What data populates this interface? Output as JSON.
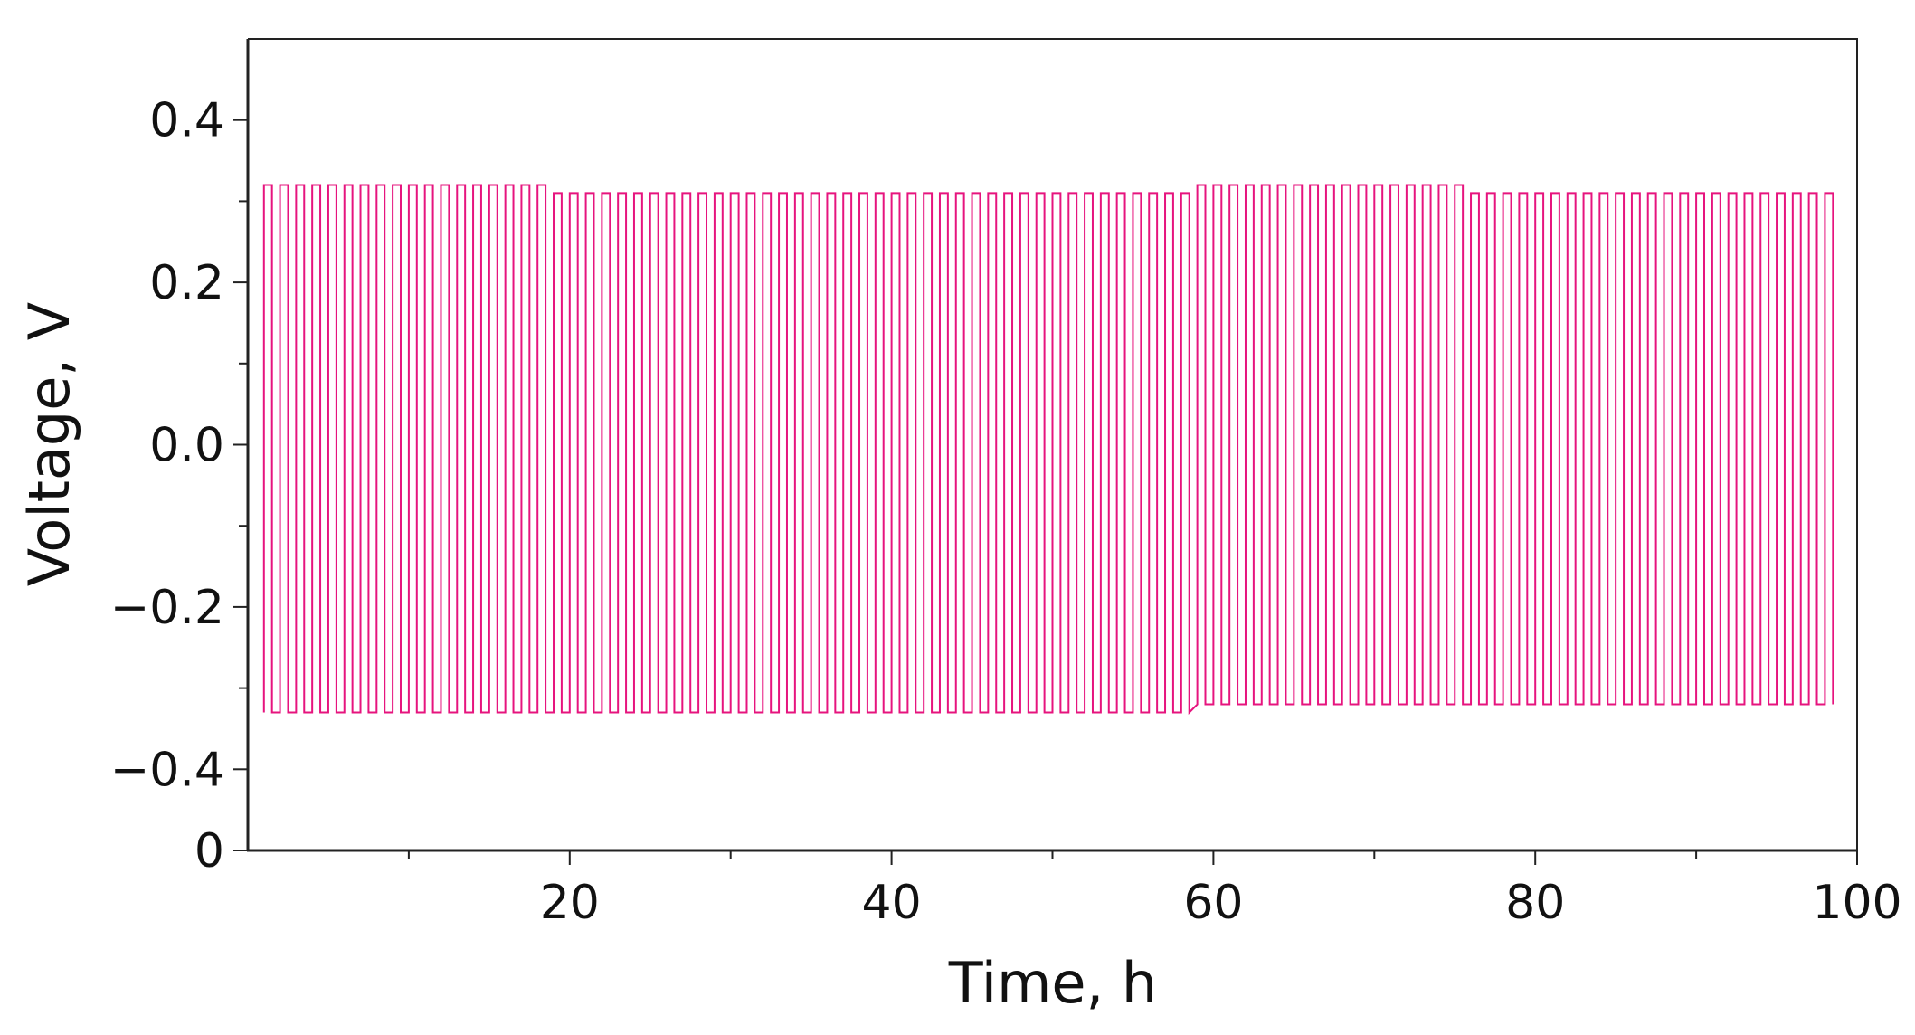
{
  "chart_data": {
    "type": "line",
    "xlabel": "Time, h",
    "ylabel": "Voltage, V",
    "color": "#e6147e",
    "xlim": [
      0,
      100
    ],
    "xticks": [
      20,
      40,
      60,
      80,
      100
    ],
    "xminor": [
      10,
      30,
      50,
      70,
      90
    ],
    "ylim": [
      -0.5,
      0.5
    ],
    "yticks": [
      {
        "value": -0.5,
        "label": "0"
      },
      {
        "value": -0.4,
        "label": "−0.4"
      },
      {
        "value": -0.2,
        "label": "−0.2"
      },
      {
        "value": 0,
        "label": "0.0"
      },
      0.2,
      0.4
    ],
    "yminor": [
      -0.3,
      -0.1,
      0.1,
      0.3
    ],
    "x": [
      1,
      1,
      1.5,
      1.5,
      2,
      2,
      2.5,
      2.5,
      3,
      3,
      3.5,
      3.5,
      4,
      4,
      4.5,
      4.5,
      5,
      5,
      5.5,
      5.5,
      6,
      6,
      6.5,
      6.5,
      7,
      7,
      7.5,
      7.5,
      8,
      8,
      8.5,
      8.5,
      9,
      9,
      9.5,
      9.5,
      10,
      10,
      10.5,
      10.5,
      11,
      11,
      11.5,
      11.5,
      12,
      12,
      12.5,
      12.5,
      13,
      13,
      13.5,
      13.5,
      14,
      14,
      14.5,
      14.5,
      15,
      15,
      15.5,
      15.5,
      16,
      16,
      16.5,
      16.5,
      17,
      17,
      17.5,
      17.5,
      18,
      18,
      18.5,
      18.5,
      19,
      19,
      19.5,
      19.5,
      20,
      20,
      20.5,
      20.5,
      21,
      21,
      21.5,
      21.5,
      22,
      22,
      22.5,
      22.5,
      23,
      23,
      23.5,
      23.5,
      24,
      24,
      24.5,
      24.5,
      25,
      25,
      25.5,
      25.5,
      26,
      26,
      26.5,
      26.5,
      27,
      27,
      27.5,
      27.5,
      28,
      28,
      28.5,
      28.5,
      29,
      29,
      29.5,
      29.5,
      30,
      30,
      30.5,
      30.5,
      31,
      31,
      31.5,
      31.5,
      32,
      32,
      32.5,
      32.5,
      33,
      33,
      33.5,
      33.5,
      34,
      34,
      34.5,
      34.5,
      35,
      35,
      35.5,
      35.5,
      36,
      36,
      36.5,
      36.5,
      37,
      37,
      37.5,
      37.5,
      38,
      38,
      38.5,
      38.5,
      39,
      39,
      39.5,
      39.5,
      40,
      40,
      40.5,
      40.5,
      41,
      41,
      41.5,
      41.5,
      42,
      42,
      42.5,
      42.5,
      43,
      43,
      43.5,
      43.5,
      44,
      44,
      44.5,
      44.5,
      45,
      45,
      45.5,
      45.5,
      46,
      46,
      46.5,
      46.5,
      47,
      47,
      47.5,
      47.5,
      48,
      48,
      48.5,
      48.5,
      49,
      49,
      49.5,
      49.5,
      50,
      50,
      50.5,
      50.5,
      51,
      51,
      51.5,
      51.5,
      52,
      52,
      52.5,
      52.5,
      53,
      53,
      53.5,
      53.5,
      54,
      54,
      54.5,
      54.5,
      55,
      55,
      55.5,
      55.5,
      56,
      56,
      56.5,
      56.5,
      57,
      57,
      57.5,
      57.5,
      58,
      58,
      58.5,
      58.5,
      59,
      59,
      59.5,
      59.5,
      60,
      60,
      60.5,
      60.5,
      61,
      61,
      61.5,
      61.5,
      62,
      62,
      62.5,
      62.5,
      63,
      63,
      63.5,
      63.5,
      64,
      64,
      64.5,
      64.5,
      65,
      65,
      65.5,
      65.5,
      66,
      66,
      66.5,
      66.5,
      67,
      67,
      67.5,
      67.5,
      68,
      68,
      68.5,
      68.5,
      69,
      69,
      69.5,
      69.5,
      70,
      70,
      70.5,
      70.5,
      71,
      71,
      71.5,
      71.5,
      72,
      72,
      72.5,
      72.5,
      73,
      73,
      73.5,
      73.5,
      74,
      74,
      74.5,
      74.5,
      75,
      75,
      75.5,
      75.5,
      76,
      76,
      76.5,
      76.5,
      77,
      77,
      77.5,
      77.5,
      78,
      78,
      78.5,
      78.5,
      79,
      79,
      79.5,
      79.5,
      80,
      80,
      80.5,
      80.5,
      81,
      81,
      81.5,
      81.5,
      82,
      82,
      82.5,
      82.5,
      83,
      83,
      83.5,
      83.5,
      84,
      84,
      84.5,
      84.5,
      85,
      85,
      85.5,
      85.5,
      86,
      86,
      86.5,
      86.5,
      87,
      87,
      87.5,
      87.5,
      88,
      88,
      88.5,
      88.5,
      89,
      89,
      89.5,
      89.5,
      90,
      90,
      90.5,
      90.5,
      91,
      91,
      91.5,
      91.5,
      92,
      92,
      92.5,
      92.5,
      93,
      93,
      93.5,
      93.5,
      94,
      94,
      94.5,
      94.5,
      95,
      95,
      95.5,
      95.5,
      96,
      96,
      96.5,
      96.5,
      97,
      97,
      97.5,
      97.5,
      98,
      98,
      98.5,
      98.5
    ],
    "values": [
      -0.33,
      0.32,
      0.32,
      -0.33,
      -0.33,
      0.32,
      0.32,
      -0.33,
      -0.33,
      0.32,
      0.32,
      -0.33,
      -0.33,
      0.32,
      0.32,
      -0.33,
      -0.33,
      0.32,
      0.32,
      -0.33,
      -0.33,
      0.32,
      0.32,
      -0.33,
      -0.33,
      0.32,
      0.32,
      -0.33,
      -0.33,
      0.32,
      0.32,
      -0.33,
      -0.33,
      0.32,
      0.32,
      -0.33,
      -0.33,
      0.32,
      0.32,
      -0.33,
      -0.33,
      0.32,
      0.32,
      -0.33,
      -0.33,
      0.32,
      0.32,
      -0.33,
      -0.33,
      0.32,
      0.32,
      -0.33,
      -0.33,
      0.32,
      0.32,
      -0.33,
      -0.33,
      0.32,
      0.32,
      -0.33,
      -0.33,
      0.32,
      0.32,
      -0.33,
      -0.33,
      0.32,
      0.32,
      -0.33,
      -0.33,
      0.32,
      0.32,
      -0.33,
      -0.33,
      0.31,
      0.31,
      -0.33,
      -0.33,
      0.31,
      0.31,
      -0.33,
      -0.33,
      0.31,
      0.31,
      -0.33,
      -0.33,
      0.31,
      0.31,
      -0.33,
      -0.33,
      0.31,
      0.31,
      -0.33,
      -0.33,
      0.31,
      0.31,
      -0.33,
      -0.33,
      0.31,
      0.31,
      -0.33,
      -0.33,
      0.31,
      0.31,
      -0.33,
      -0.33,
      0.31,
      0.31,
      -0.33,
      -0.33,
      0.31,
      0.31,
      -0.33,
      -0.33,
      0.31,
      0.31,
      -0.33,
      -0.33,
      0.31,
      0.31,
      -0.33,
      -0.33,
      0.31,
      0.31,
      -0.33,
      -0.33,
      0.31,
      0.31,
      -0.33,
      -0.33,
      0.31,
      0.31,
      -0.33,
      -0.33,
      0.31,
      0.31,
      -0.33,
      -0.33,
      0.31,
      0.31,
      -0.33,
      -0.33,
      0.31,
      0.31,
      -0.33,
      -0.33,
      0.31,
      0.31,
      -0.33,
      -0.33,
      0.31,
      0.31,
      -0.33,
      -0.33,
      0.31,
      0.31,
      -0.33,
      -0.33,
      0.31,
      0.31,
      -0.33,
      -0.33,
      0.31,
      0.31,
      -0.33,
      -0.33,
      0.31,
      0.31,
      -0.33,
      -0.33,
      0.31,
      0.31,
      -0.33,
      -0.33,
      0.31,
      0.31,
      -0.33,
      -0.33,
      0.31,
      0.31,
      -0.33,
      -0.33,
      0.31,
      0.31,
      -0.33,
      -0.33,
      0.31,
      0.31,
      -0.33,
      -0.33,
      0.31,
      0.31,
      -0.33,
      -0.33,
      0.31,
      0.31,
      -0.33,
      -0.33,
      0.31,
      0.31,
      -0.33,
      -0.33,
      0.31,
      0.31,
      -0.33,
      -0.33,
      0.31,
      0.31,
      -0.33,
      -0.33,
      0.31,
      0.31,
      -0.33,
      -0.33,
      0.31,
      0.31,
      -0.33,
      -0.33,
      0.31,
      0.31,
      -0.33,
      -0.33,
      0.31,
      0.31,
      -0.33,
      -0.33,
      0.31,
      0.31,
      -0.33,
      -0.33,
      0.31,
      0.31,
      -0.33,
      -0.32,
      0.32,
      0.32,
      -0.32,
      -0.32,
      0.32,
      0.32,
      -0.32,
      -0.32,
      0.32,
      0.32,
      -0.32,
      -0.32,
      0.32,
      0.32,
      -0.32,
      -0.32,
      0.32,
      0.32,
      -0.32,
      -0.32,
      0.32,
      0.32,
      -0.32,
      -0.32,
      0.32,
      0.32,
      -0.32,
      -0.32,
      0.32,
      0.32,
      -0.32,
      -0.32,
      0.32,
      0.32,
      -0.32,
      -0.32,
      0.32,
      0.32,
      -0.32,
      -0.32,
      0.32,
      0.32,
      -0.32,
      -0.32,
      0.32,
      0.32,
      -0.32,
      -0.32,
      0.32,
      0.32,
      -0.32,
      -0.32,
      0.32,
      0.32,
      -0.32,
      -0.32,
      0.32,
      0.32,
      -0.32,
      -0.32,
      0.32,
      0.32,
      -0.32,
      -0.32,
      0.32,
      0.32,
      -0.32,
      -0.32,
      0.31,
      0.31,
      -0.32,
      -0.32,
      0.31,
      0.31,
      -0.32,
      -0.32,
      0.31,
      0.31,
      -0.32,
      -0.32,
      0.31,
      0.31,
      -0.32,
      -0.32,
      0.31,
      0.31,
      -0.32,
      -0.32,
      0.31,
      0.31,
      -0.32,
      -0.32,
      0.31,
      0.31,
      -0.32,
      -0.32,
      0.31,
      0.31,
      -0.32,
      -0.32,
      0.31,
      0.31,
      -0.32,
      -0.32,
      0.31,
      0.31,
      -0.32,
      -0.32,
      0.31,
      0.31,
      -0.32,
      -0.32,
      0.31,
      0.31,
      -0.32,
      -0.32,
      0.31,
      0.31,
      -0.32,
      -0.32,
      0.31,
      0.31,
      -0.32,
      -0.32,
      0.31,
      0.31,
      -0.32,
      -0.32,
      0.31,
      0.31,
      -0.32,
      -0.32,
      0.31,
      0.31,
      -0.32,
      -0.32,
      0.31,
      0.31,
      -0.32,
      -0.32,
      0.31,
      0.31,
      -0.32,
      -0.32,
      0.31,
      0.31,
      -0.32,
      -0.32,
      0.31,
      0.31,
      -0.32,
      -0.32,
      0.31,
      0.31,
      -0.32,
      -0.32,
      0.31,
      0.31,
      -0.32
    ]
  }
}
